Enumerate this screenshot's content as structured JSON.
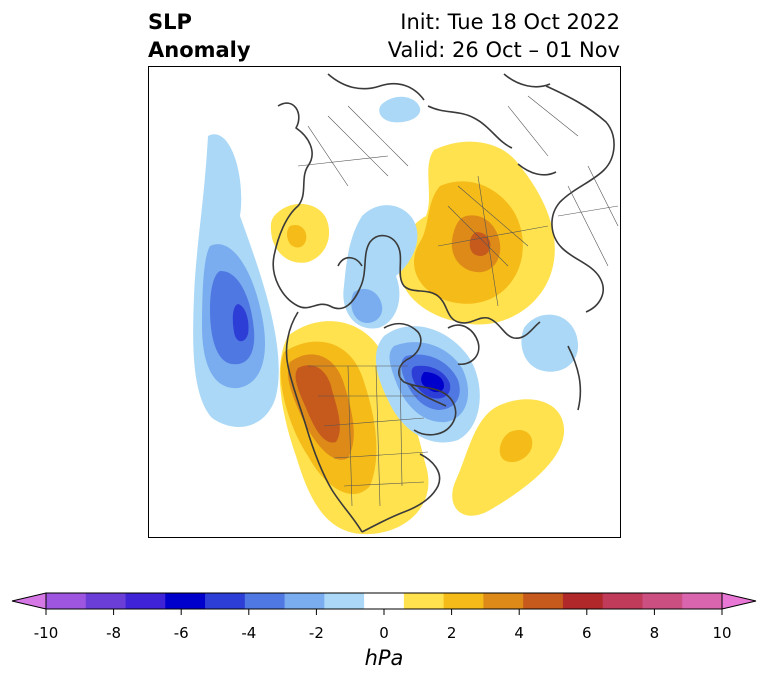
{
  "title": {
    "left_line1": "SLP",
    "left_line2": "Anomaly",
    "right_line1": "Init: Tue 18 Oct 2022",
    "right_line2": "Valid: 26 Oct – 01 Nov"
  },
  "colorbar": {
    "unit": "hPa",
    "min": -10,
    "max": 10,
    "step": 1,
    "extend": "both",
    "tick_labels": [
      "-10",
      "-8",
      "-6",
      "-4",
      "-2",
      "0",
      "2",
      "4",
      "6",
      "8",
      "10"
    ],
    "colors": [
      "#d578e6",
      "#9e56e0",
      "#6b3ed8",
      "#3e24d6",
      "#0000cc",
      "#2c3ed6",
      "#5078e2",
      "#7aadef",
      "#aad8f6",
      "#ffffff",
      "#ffe24d",
      "#f5bb18",
      "#dd8a18",
      "#c65a1c",
      "#b0282a",
      "#c03a5a",
      "#cc4f82",
      "#d865ae",
      "#e877d6"
    ]
  },
  "map": {
    "projection": "north-polar-stereographic",
    "region": "Northern Hemisphere",
    "anomaly_centers": [
      {
        "name": "northeast-pacific-low",
        "sign": "negative",
        "peak_hpa": -5
      },
      {
        "name": "western-north-america-high",
        "sign": "positive",
        "peak_hpa": 4
      },
      {
        "name": "hudson-bay-low",
        "sign": "negative",
        "peak_hpa": -7
      },
      {
        "name": "north-atlantic-high",
        "sign": "positive",
        "peak_hpa": 2
      },
      {
        "name": "eurasia-arctic-high",
        "sign": "positive",
        "peak_hpa": 3
      },
      {
        "name": "arctic-low",
        "sign": "negative",
        "peak_hpa": -2
      },
      {
        "name": "europe-low",
        "sign": "negative",
        "peak_hpa": -1
      }
    ]
  }
}
